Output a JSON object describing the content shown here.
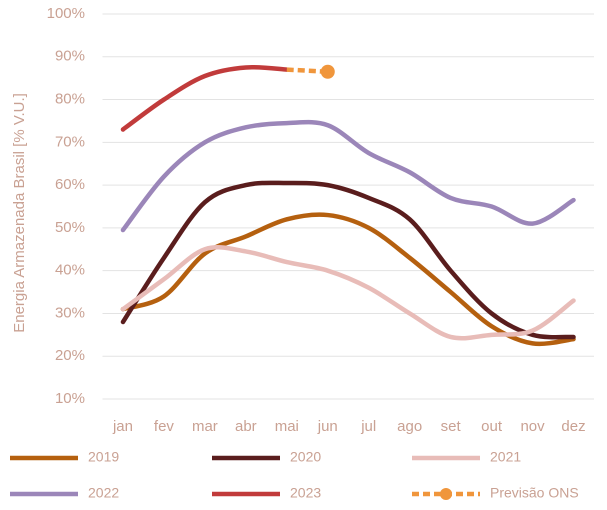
{
  "chart_data": {
    "type": "line",
    "y_label": "Energia Armazenada Brasil [% V.U.]",
    "categories": [
      "jan",
      "fev",
      "mar",
      "abr",
      "mai",
      "jun",
      "jul",
      "ago",
      "set",
      "out",
      "nov",
      "dez"
    ],
    "ylim": [
      10,
      100
    ],
    "yticks": [
      {
        "value": 10,
        "label": "10%"
      },
      {
        "value": 20,
        "label": "20%"
      },
      {
        "value": 30,
        "label": "30%"
      },
      {
        "value": 40,
        "label": "40%"
      },
      {
        "value": 50,
        "label": "50%"
      },
      {
        "value": 60,
        "label": "60%"
      },
      {
        "value": 70,
        "label": "70%"
      },
      {
        "value": 80,
        "label": "80%"
      },
      {
        "value": 90,
        "label": "90%"
      },
      {
        "value": 100,
        "label": "100%"
      }
    ],
    "grid": true,
    "series": [
      {
        "name": "2019",
        "color": "#b5600f",
        "values": [
          31,
          34,
          44,
          48,
          52,
          53,
          50,
          43,
          35,
          27,
          23,
          24
        ]
      },
      {
        "name": "2020",
        "color": "#5a1d1d",
        "values": [
          28,
          43,
          56,
          60,
          60.5,
          60,
          57,
          52,
          40,
          30,
          25,
          24.5
        ]
      },
      {
        "name": "2021",
        "color": "#e8bcb8",
        "values": [
          31,
          38,
          45,
          44.5,
          42,
          40,
          36,
          30,
          24.5,
          25,
          26,
          33
        ]
      },
      {
        "name": "2022",
        "color": "#9b86b9",
        "values": [
          49.5,
          62,
          70,
          73.5,
          74.5,
          74,
          67.5,
          63,
          57,
          55,
          51,
          56.5
        ]
      },
      {
        "name": "2023",
        "color": "#c13b3b",
        "values": [
          73,
          80,
          85.5,
          87.5,
          87,
          null,
          null,
          null,
          null,
          null,
          null,
          null
        ]
      },
      {
        "name": "Previsão ONS",
        "color": "#f0963c",
        "dashed": true,
        "values": [
          null,
          null,
          null,
          null,
          87,
          86.5,
          null,
          null,
          null,
          null,
          null,
          null
        ]
      }
    ]
  }
}
